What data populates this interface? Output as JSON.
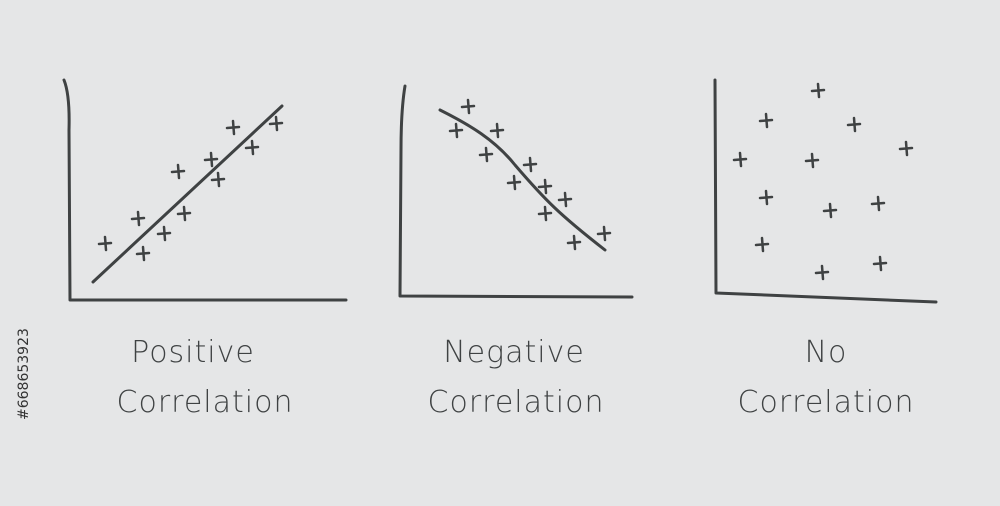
{
  "panels": [
    {
      "title": [
        "Positive",
        "Correlation"
      ]
    },
    {
      "title": [
        "Negative",
        "Correlation"
      ]
    },
    {
      "title": [
        "No",
        "Correlation"
      ]
    }
  ],
  "stock_id": "#668653923"
}
